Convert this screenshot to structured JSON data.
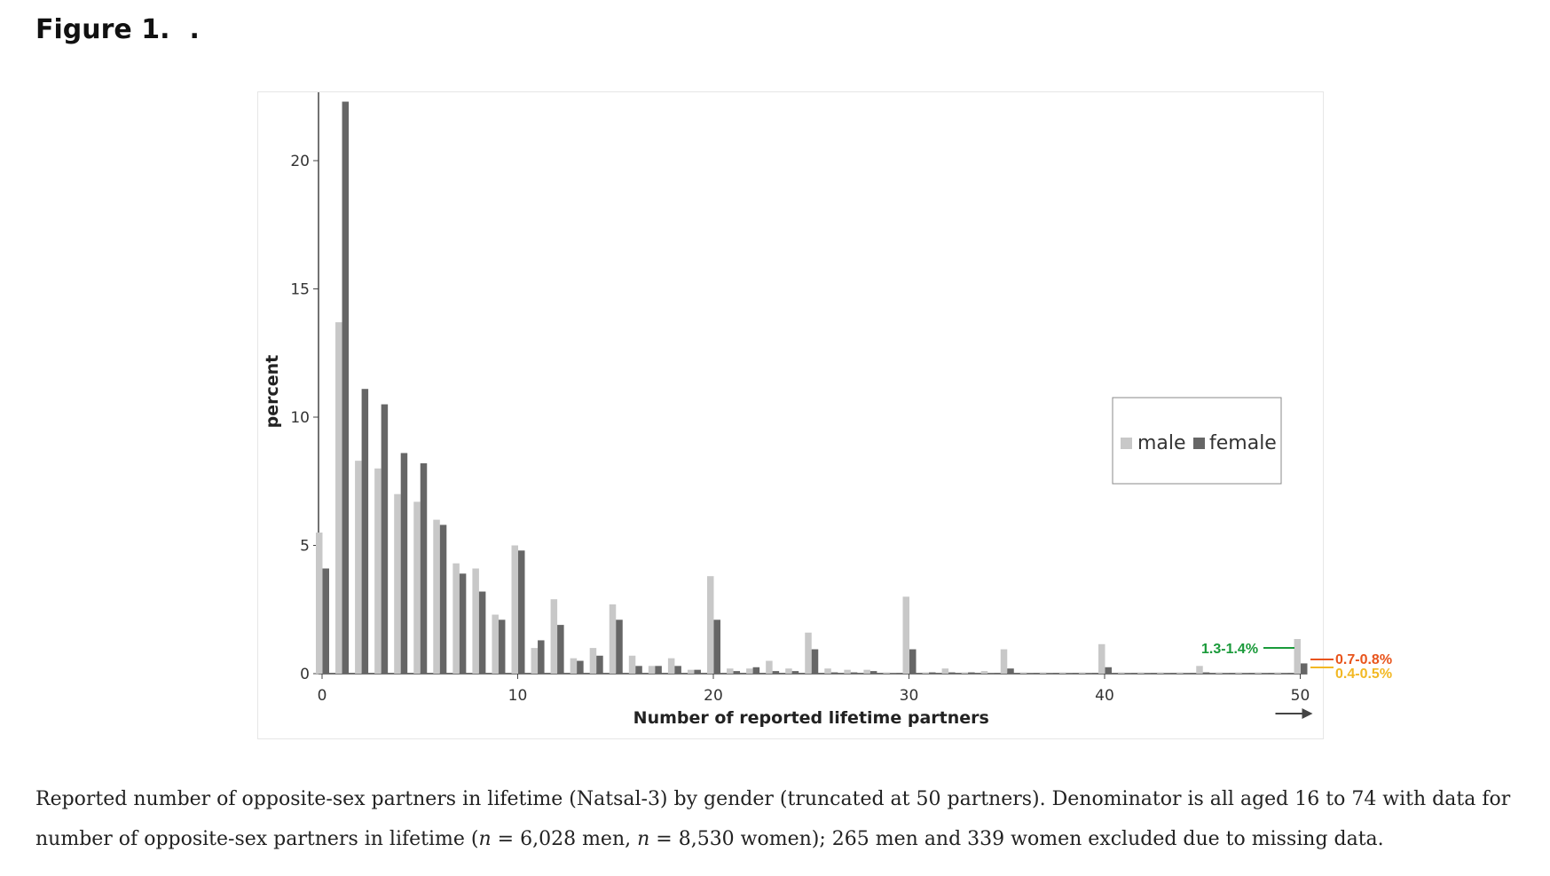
{
  "figure": {
    "title": "Figure 1.",
    "title_suffix": ".",
    "caption_part1": "Reported number of opposite-sex partners in lifetime (Natsal-3) by gender (truncated at 50 partners). Denominator is all aged 16 to 74 with data for number of opposite-sex partners in lifetime (",
    "n_symbol": "n",
    "caption_part2": " = 6,028 men, ",
    "caption_part3": " = 8,530 women); 265 men and 339 women excluded due to missing data."
  },
  "chart_data": {
    "type": "bar",
    "xlabel": "Number of reported lifetime partners",
    "ylabel": "percent",
    "xlim": [
      0,
      50
    ],
    "ylim": [
      0,
      22.5
    ],
    "xticks": [
      0,
      10,
      20,
      30,
      40,
      50
    ],
    "yticks": [
      0,
      5,
      10,
      15,
      20
    ],
    "legend_position": "right",
    "x": [
      0,
      1,
      2,
      3,
      4,
      5,
      6,
      7,
      8,
      9,
      10,
      11,
      12,
      13,
      14,
      15,
      16,
      17,
      18,
      19,
      20,
      21,
      22,
      23,
      24,
      25,
      26,
      27,
      28,
      29,
      30,
      31,
      32,
      33,
      34,
      35,
      36,
      37,
      38,
      39,
      40,
      41,
      42,
      43,
      44,
      45,
      46,
      47,
      48,
      49,
      50
    ],
    "series": [
      {
        "name": "male",
        "color": "#c8c8c8",
        "values": [
          5.5,
          13.7,
          8.3,
          8.0,
          7.0,
          6.7,
          6.0,
          4.3,
          4.1,
          2.3,
          5.0,
          1.0,
          2.9,
          0.6,
          1.0,
          2.7,
          0.7,
          0.3,
          0.6,
          0.15,
          3.8,
          0.2,
          0.2,
          0.5,
          0.2,
          1.6,
          0.2,
          0.15,
          0.15,
          0.05,
          3.0,
          0.05,
          0.2,
          0.05,
          0.1,
          0.95,
          0.05,
          0.05,
          0.05,
          0.05,
          1.15,
          0.05,
          0.05,
          0.05,
          0.05,
          0.3,
          0.05,
          0.05,
          0.05,
          0.05,
          1.35
        ]
      },
      {
        "name": "female",
        "color": "#666666",
        "values": [
          4.1,
          22.3,
          11.1,
          10.5,
          8.6,
          8.2,
          5.8,
          3.9,
          3.2,
          2.1,
          4.8,
          1.3,
          1.9,
          0.5,
          0.7,
          2.1,
          0.3,
          0.3,
          0.3,
          0.15,
          2.1,
          0.1,
          0.25,
          0.1,
          0.1,
          0.95,
          0.05,
          0.05,
          0.1,
          0.02,
          0.95,
          0.05,
          0.05,
          0.05,
          0.02,
          0.2,
          0.02,
          0.02,
          0.02,
          0.02,
          0.25,
          0.02,
          0.02,
          0.02,
          0.02,
          0.05,
          0.02,
          0.02,
          0.02,
          0.02,
          0.4
        ]
      }
    ],
    "annotations": [
      {
        "text": "1.3-1.4%",
        "color": "#1a9a3a"
      },
      {
        "text": "0.7-0.8%",
        "color": "#e8541c"
      },
      {
        "text": "0.4-0.5%",
        "color": "#f2b824"
      }
    ]
  }
}
